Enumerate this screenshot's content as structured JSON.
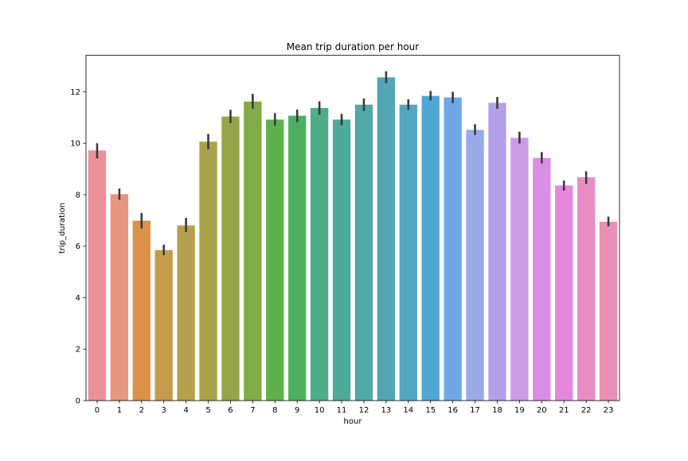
{
  "chart_data": {
    "type": "bar",
    "title": "Mean trip duration per hour",
    "xlabel": "hour",
    "ylabel": "trip_duration",
    "categories": [
      "0",
      "1",
      "2",
      "3",
      "4",
      "5",
      "6",
      "7",
      "8",
      "9",
      "10",
      "11",
      "12",
      "13",
      "14",
      "15",
      "16",
      "17",
      "18",
      "19",
      "20",
      "21",
      "22",
      "23"
    ],
    "values": [
      9.72,
      8.02,
      6.99,
      5.85,
      6.81,
      10.06,
      11.04,
      11.62,
      10.92,
      11.07,
      11.37,
      10.92,
      11.5,
      12.56,
      11.5,
      11.84,
      11.78,
      10.52,
      11.57,
      10.21,
      9.43,
      8.36,
      8.68,
      6.95
    ],
    "error_low": [
      9.41,
      7.8,
      6.69,
      5.65,
      6.55,
      9.76,
      10.78,
      11.34,
      10.68,
      10.82,
      11.11,
      10.7,
      11.26,
      12.34,
      11.3,
      11.66,
      11.56,
      10.32,
      11.34,
      9.99,
      9.22,
      8.16,
      8.42,
      6.77
    ],
    "error_high": [
      10.0,
      8.24,
      7.29,
      6.06,
      7.1,
      10.36,
      11.3,
      11.92,
      11.17,
      11.31,
      11.63,
      11.14,
      11.74,
      12.8,
      11.71,
      12.03,
      12.0,
      10.74,
      11.8,
      10.45,
      9.66,
      8.55,
      8.91,
      7.15
    ],
    "ylim": [
      0,
      13.42
    ],
    "yticks": [
      0,
      2,
      4,
      6,
      8,
      10,
      12
    ],
    "grid": false,
    "colors": [
      "#ea9298",
      "#e6977e",
      "#dc9048",
      "#c39d4b",
      "#b5a04d",
      "#a9a24a",
      "#97a54a",
      "#82ab49",
      "#5fb14b",
      "#4db061",
      "#4dae87",
      "#4eaa99",
      "#51a9a8",
      "#51a7b3",
      "#53a6c0",
      "#4fa7d1",
      "#6fa8e5",
      "#9aaae8",
      "#b3a0e8",
      "#cc9be6",
      "#dc8de6",
      "#e587db",
      "#e88dc6",
      "#e991b5"
    ]
  }
}
